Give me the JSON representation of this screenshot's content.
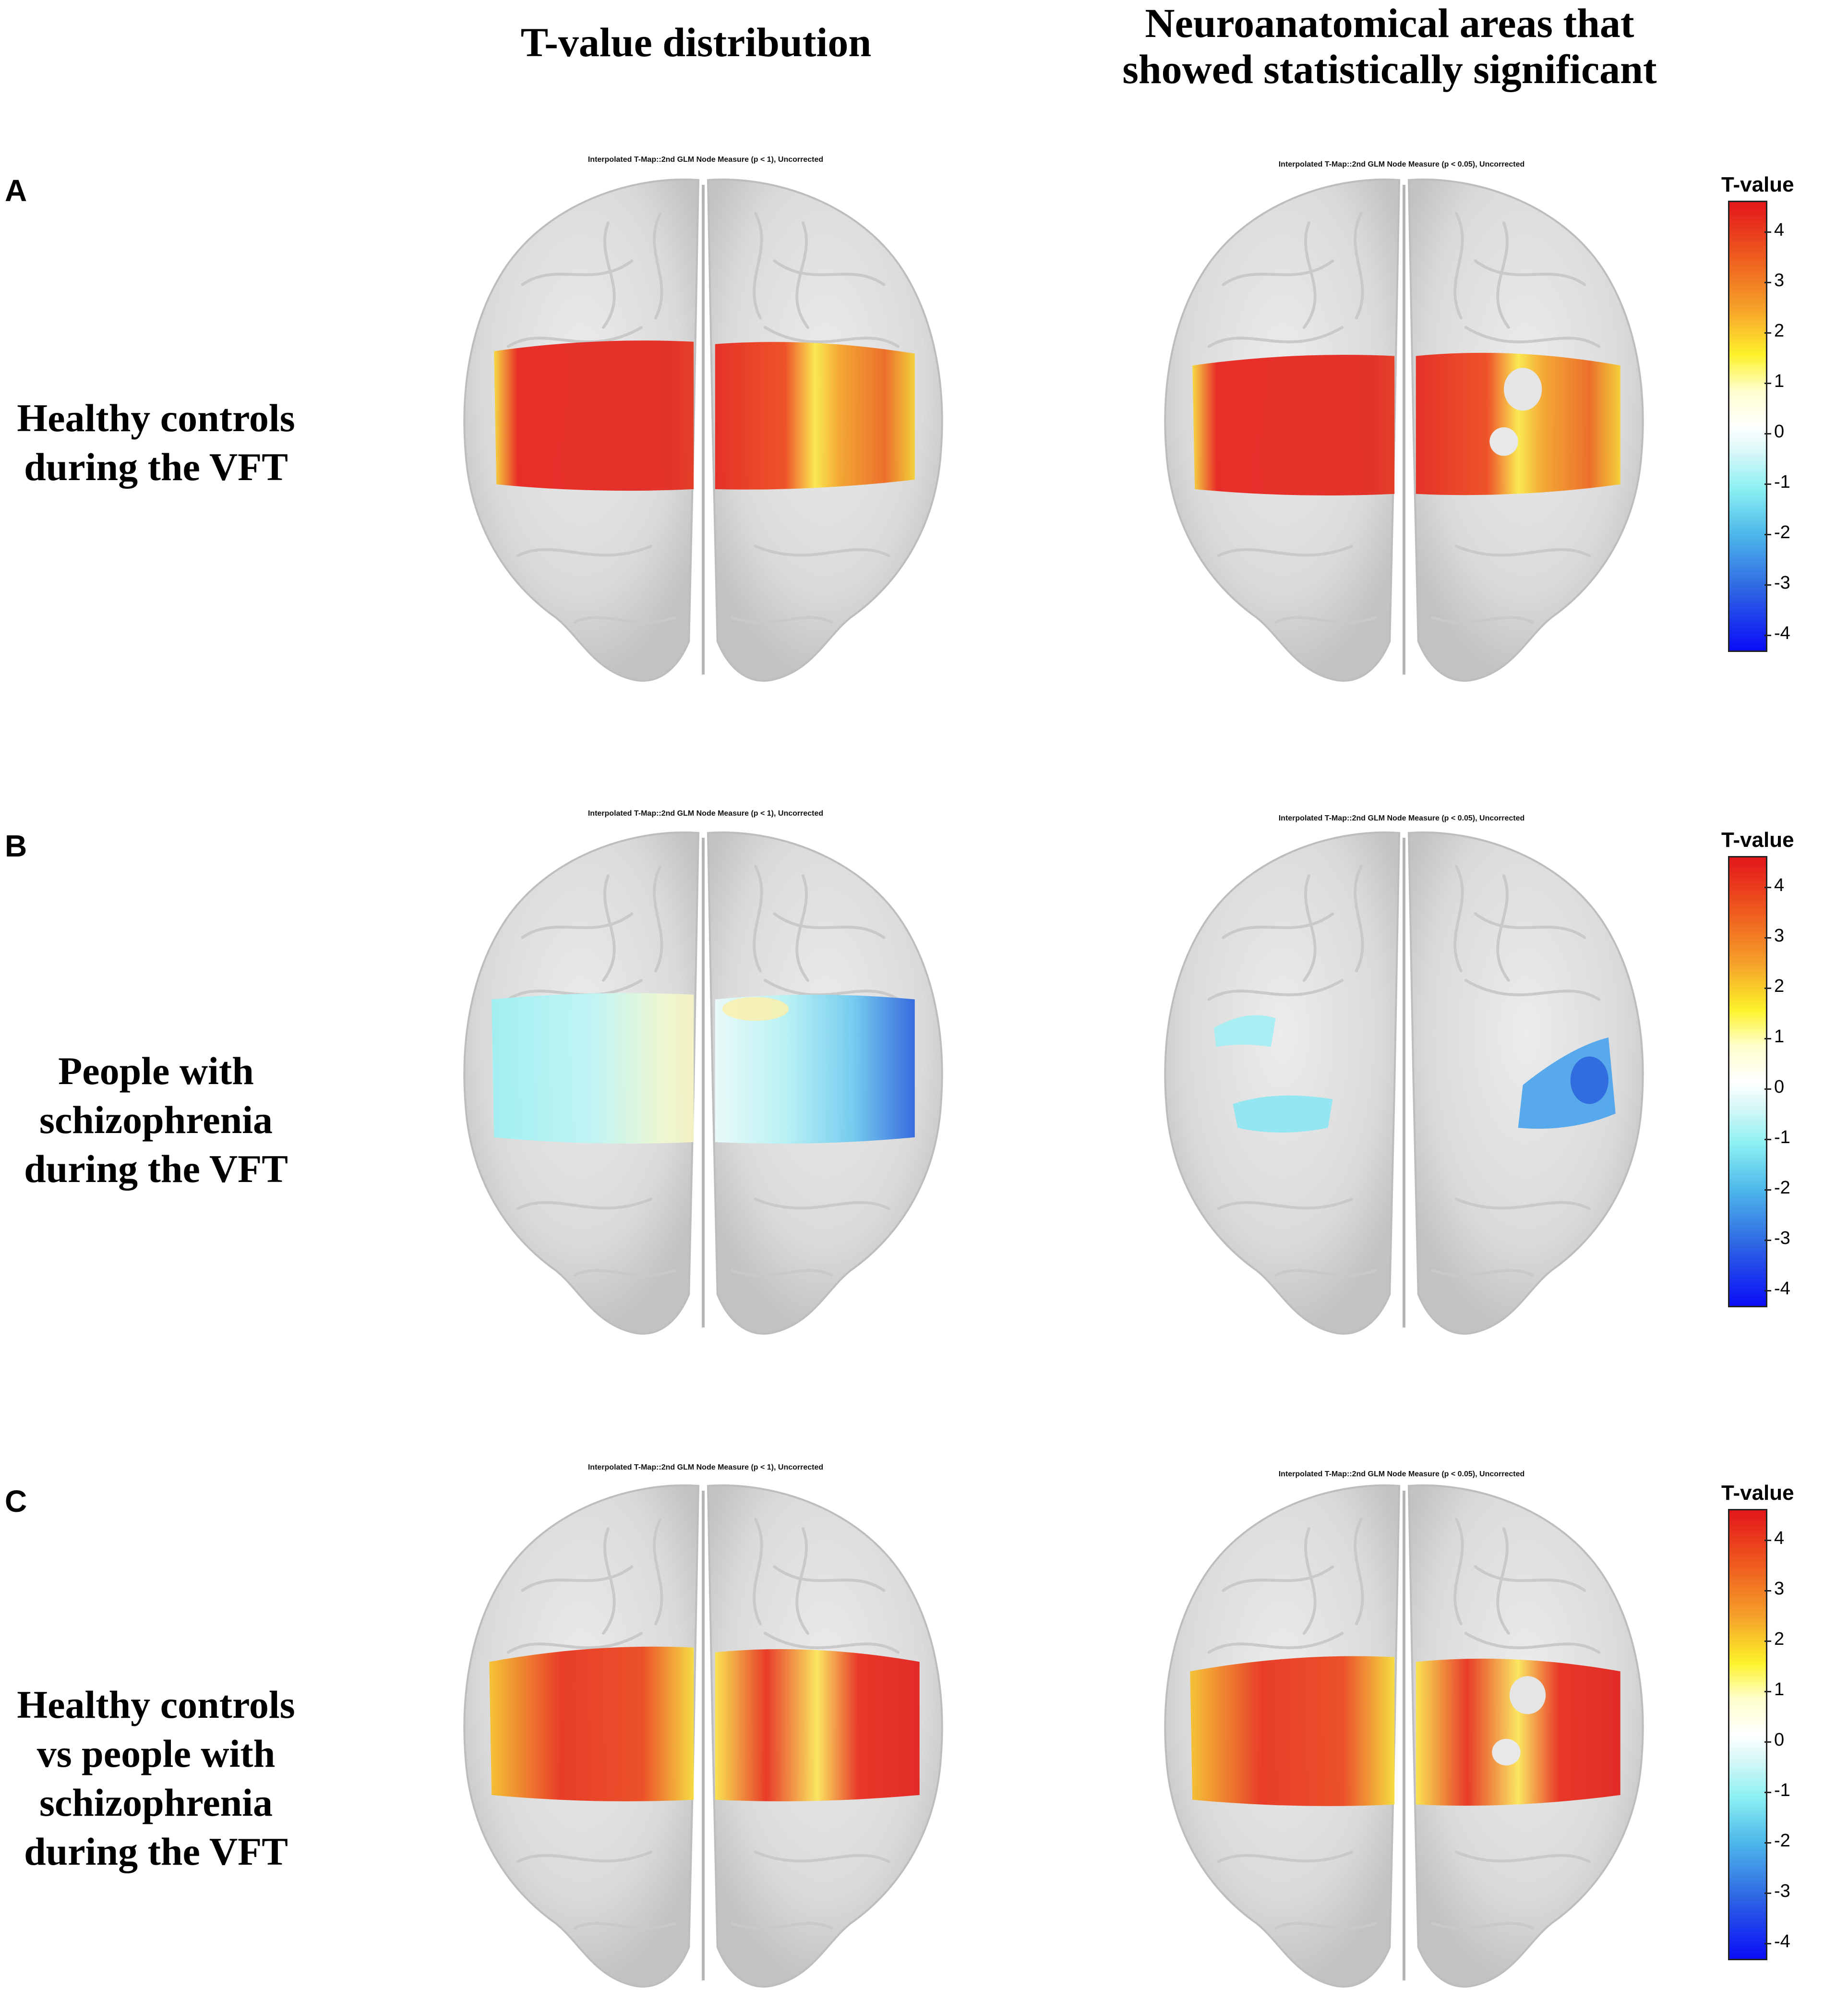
{
  "headers": {
    "left": "T-value distribution",
    "right_line1": "Neuroanatomical areas that",
    "right_line2": "showed statistically significant"
  },
  "rows": [
    {
      "letter": "A",
      "label_lines": [
        "Healthy controls",
        "during the VFT"
      ],
      "left_map_title": "Interpolated T-Map::2nd GLM Node Measure (p < 1), Uncorrected",
      "right_map_title": "Interpolated T-Map::2nd GLM Node Measure (p < 0.05), Uncorrected"
    },
    {
      "letter": "B",
      "label_lines": [
        "People with",
        "schizophrenia",
        "during the VFT"
      ],
      "left_map_title": "Interpolated T-Map::2nd GLM Node Measure (p < 1), Uncorrected",
      "right_map_title": "Interpolated T-Map::2nd GLM Node Measure (p < 0.05), Uncorrected"
    },
    {
      "letter": "C",
      "label_lines": [
        "Healthy controls",
        "vs people with",
        "schizophrenia",
        "during the VFT"
      ],
      "left_map_title": "Interpolated T-Map::2nd GLM Node Measure (p < 1), Uncorrected",
      "right_map_title": "Interpolated T-Map::2nd GLM Node Measure (p < 0.05), Uncorrected"
    }
  ],
  "colorbar": {
    "title": "T-value",
    "ticks": [
      "4",
      "3",
      "2",
      "1",
      "0",
      "-1",
      "-2",
      "-3",
      "-4"
    ],
    "range": [
      -4.5,
      4.5
    ],
    "colors": {
      "max": "#e3161b",
      "mid": "#ffffff",
      "min": "#0a0df7"
    }
  }
}
